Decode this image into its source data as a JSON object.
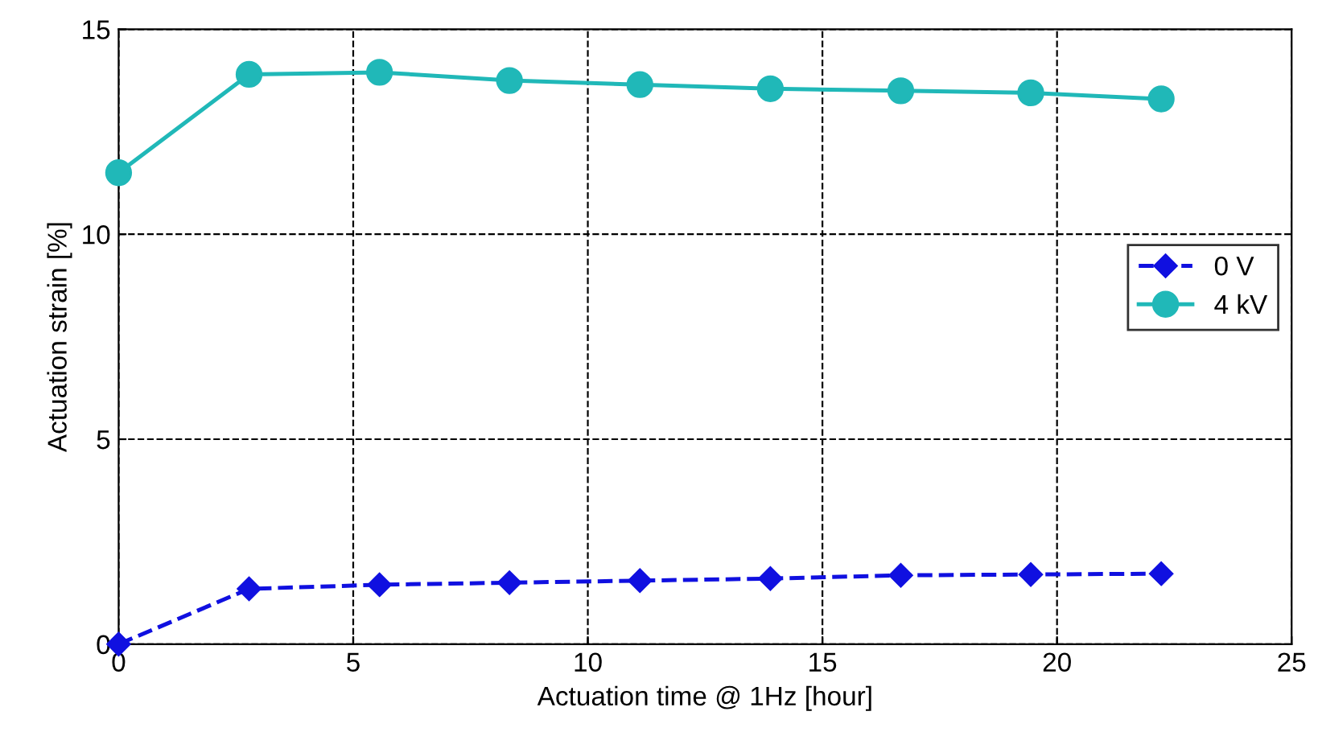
{
  "chart_data": {
    "type": "line",
    "xlabel": "Actuation time @ 1Hz [hour]",
    "ylabel": "Actuation strain [%]",
    "x": [
      0,
      2.78,
      5.56,
      8.33,
      11.11,
      13.89,
      16.67,
      19.44,
      22.22
    ],
    "series": [
      {
        "name": "0 V",
        "color": "#1010e0",
        "marker": "diamond",
        "line_style": "dashed",
        "values": [
          0,
          1.35,
          1.45,
          1.5,
          1.55,
          1.6,
          1.68,
          1.7,
          1.72
        ]
      },
      {
        "name": "4 kV",
        "color": "#20b8b8",
        "marker": "circle",
        "line_style": "solid",
        "values": [
          11.5,
          13.9,
          13.95,
          13.75,
          13.65,
          13.55,
          13.5,
          13.45,
          13.3
        ]
      }
    ],
    "xlim": [
      0,
      25
    ],
    "xticks": [
      0,
      5,
      10,
      15,
      20,
      25
    ],
    "ylim": [
      0,
      15
    ],
    "yticks": [
      0,
      5,
      10,
      15
    ],
    "grid": true,
    "legend": "right"
  }
}
